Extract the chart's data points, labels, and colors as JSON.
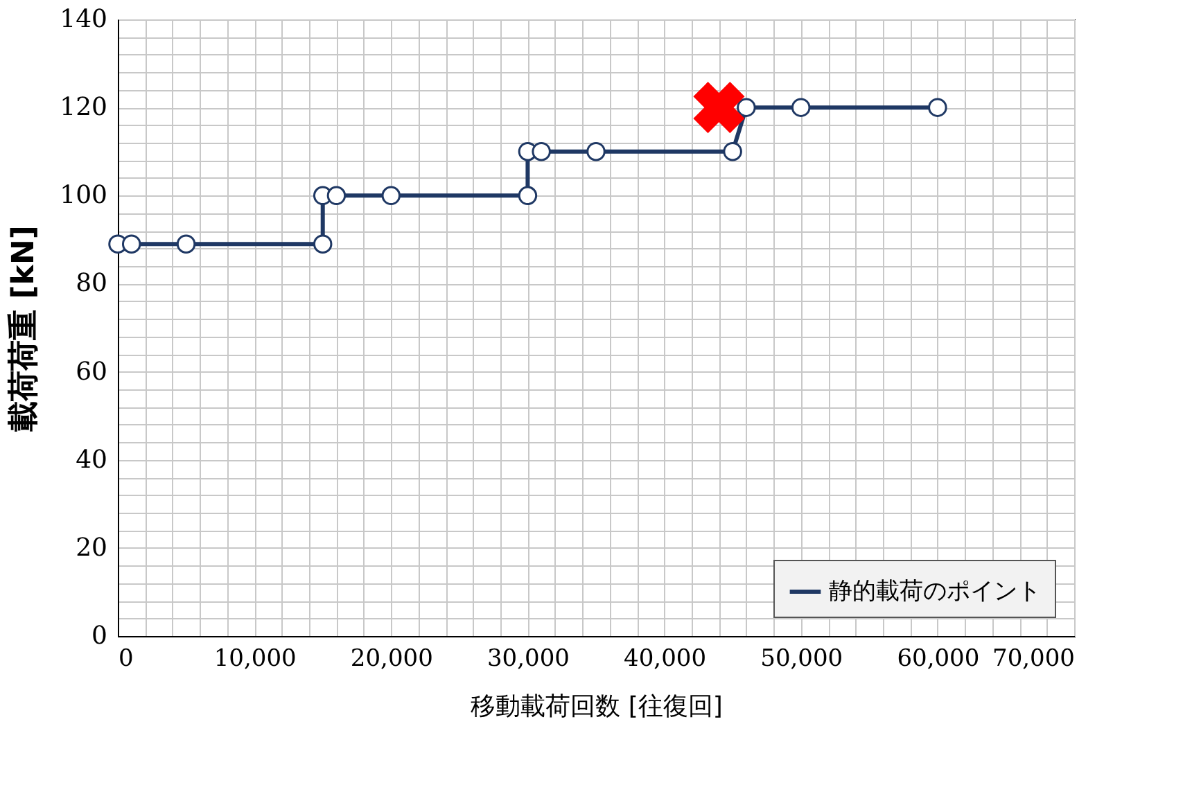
{
  "chart_data": {
    "type": "line",
    "xlabel": "移動載荷回数  [往復回]",
    "ylabel": "載荷荷重 [kN]",
    "x": [
      0,
      1000,
      5000,
      15000,
      15000,
      16000,
      20000,
      30000,
      30000,
      31000,
      35000,
      45000,
      46000,
      50000,
      60000
    ],
    "series": [
      {
        "name": "静的載荷のポイント",
        "color": "#1f3864",
        "marker": "circle",
        "values": [
          89,
          89,
          89,
          89,
          100,
          100,
          100,
          100,
          110,
          110,
          110,
          110,
          120,
          120,
          120
        ]
      },
      {
        "type": "scatter",
        "marker": "cross",
        "color": "#ff0000",
        "x": [
          44000
        ],
        "values": [
          120
        ]
      }
    ],
    "xlim": [
      0,
      70000
    ],
    "ylim": [
      0,
      140
    ],
    "xticks": [
      0,
      {
        "value": 2000,
        "label": null
      },
      {
        "value": 4000,
        "label": null
      },
      {
        "value": 6000,
        "label": null
      },
      {
        "value": 8000,
        "label": null
      },
      {
        "value": 10000,
        "label": "10,000"
      },
      {
        "value": 12000,
        "label": null
      },
      {
        "value": 14000,
        "label": null
      },
      {
        "value": 16000,
        "label": null
      },
      {
        "value": 18000,
        "label": null
      },
      {
        "value": 20000,
        "label": "20,000"
      },
      {
        "value": 22000,
        "label": null
      },
      {
        "value": 24000,
        "label": null
      },
      {
        "value": 26000,
        "label": null
      },
      {
        "value": 28000,
        "label": null
      },
      {
        "value": 30000,
        "label": "30,000"
      },
      {
        "value": 32000,
        "label": null
      },
      {
        "value": 34000,
        "label": null
      },
      {
        "value": 36000,
        "label": null
      },
      {
        "value": 38000,
        "label": null
      },
      {
        "value": 40000,
        "label": "40,000"
      },
      {
        "value": 42000,
        "label": null
      },
      {
        "value": 44000,
        "label": null
      },
      {
        "value": 46000,
        "label": null
      },
      {
        "value": 48000,
        "label": null
      },
      {
        "value": 50000,
        "label": "50,000"
      },
      {
        "value": 52000,
        "label": null
      },
      {
        "value": 54000,
        "label": null
      },
      {
        "value": 56000,
        "label": null
      },
      {
        "value": 58000,
        "label": null
      },
      {
        "value": 60000,
        "label": "60,000"
      },
      {
        "value": 62000,
        "label": null
      },
      {
        "value": 64000,
        "label": null
      },
      {
        "value": 66000,
        "label": null
      },
      {
        "value": 68000,
        "label": null
      },
      {
        "value": 70000,
        "label": "70,000"
      }
    ],
    "yticks": [
      0,
      {
        "value": 4,
        "label": null
      },
      {
        "value": 8,
        "label": null
      },
      {
        "value": 12,
        "label": null
      },
      {
        "value": 16,
        "label": null
      },
      20,
      {
        "value": 24,
        "label": null
      },
      {
        "value": 28,
        "label": null
      },
      {
        "value": 32,
        "label": null
      },
      {
        "value": 36,
        "label": null
      },
      40,
      {
        "value": 44,
        "label": null
      },
      {
        "value": 48,
        "label": null
      },
      {
        "value": 52,
        "label": null
      },
      {
        "value": 56,
        "label": null
      },
      60,
      {
        "value": 64,
        "label": null
      },
      {
        "value": 68,
        "label": null
      },
      {
        "value": 72,
        "label": null
      },
      {
        "value": 76,
        "label": null
      },
      80,
      {
        "value": 84,
        "label": null
      },
      {
        "value": 88,
        "label": null
      },
      {
        "value": 92,
        "label": null
      },
      {
        "value": 96,
        "label": null
      },
      100,
      {
        "value": 104,
        "label": null
      },
      {
        "value": 108,
        "label": null
      },
      {
        "value": 112,
        "label": null
      },
      {
        "value": 116,
        "label": null
      },
      120,
      {
        "value": 124,
        "label": null
      },
      {
        "value": 128,
        "label": null
      },
      {
        "value": 132,
        "label": null
      },
      {
        "value": 136,
        "label": null
      },
      140
    ],
    "grid": true,
    "legend": "bottom right"
  }
}
